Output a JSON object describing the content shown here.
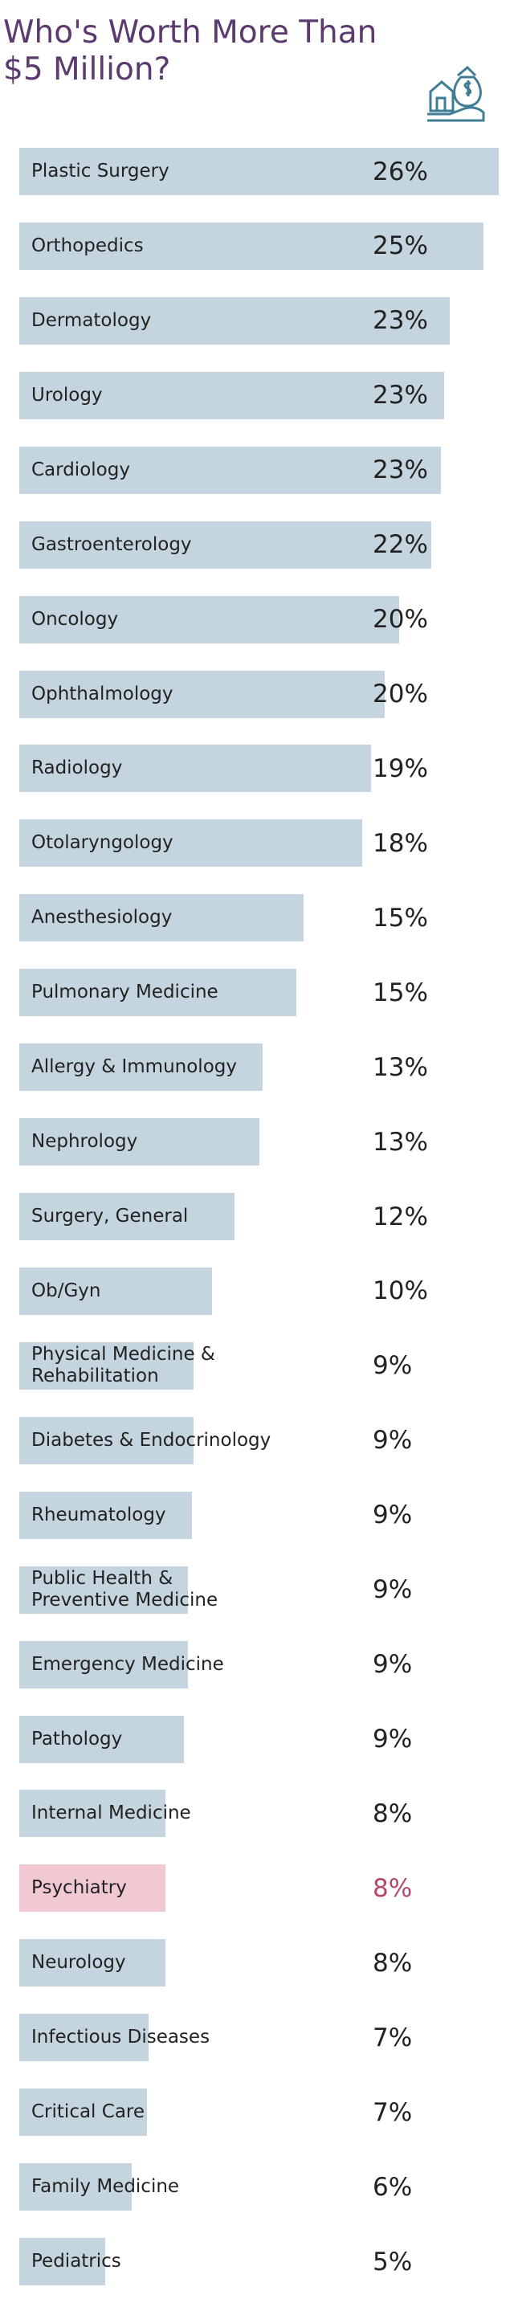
{
  "chart_data": {
    "type": "bar",
    "orientation": "horizontal",
    "title": "Who's Worth More Than $5 Million?",
    "categories": [
      "Plastic Surgery",
      "Orthopedics",
      "Dermatology",
      "Urology",
      "Cardiology",
      "Gastroenterology",
      "Oncology",
      "Ophthalmology",
      "Radiology",
      "Otolaryngology",
      "Anesthesiology",
      "Pulmonary Medicine",
      "Allergy & Immunology",
      "Nephrology",
      "Surgery, General",
      "Ob/Gyn",
      "Physical Medicine & Rehabilitation",
      "Diabetes & Endocrinology",
      "Rheumatology",
      "Public Health & Preventive Medicine",
      "Emergency Medicine",
      "Pathology",
      "Internal Medicine",
      "Psychiatry",
      "Neurology",
      "Infectious Diseases",
      "Critical Care",
      "Family Medicine",
      "Pediatrics"
    ],
    "values": [
      25.6,
      24.8,
      23.0,
      22.7,
      22.5,
      22.0,
      20.3,
      19.5,
      18.8,
      18.3,
      15.2,
      14.8,
      13.0,
      12.8,
      11.5,
      10.3,
      9.3,
      9.3,
      9.2,
      9.0,
      9.0,
      8.8,
      7.8,
      7.8,
      7.8,
      6.9,
      6.8,
      6.0,
      4.6
    ],
    "value_labels": [
      "26%",
      "25%",
      "23%",
      "23%",
      "23%",
      "22%",
      "20%",
      "20%",
      "19%",
      "18%",
      "15%",
      "15%",
      "13%",
      "13%",
      "12%",
      "10%",
      "9%",
      "9%",
      "9%",
      "9%",
      "9%",
      "9%",
      "8%",
      "8%",
      "8%",
      "7%",
      "7%",
      "6%",
      "5%"
    ],
    "xlim": [
      0,
      25.6
    ],
    "color": "#c5d5e0",
    "highlight": {
      "index": 23,
      "color": "#f0c9d3",
      "text_color": "#b5476b"
    }
  }
}
